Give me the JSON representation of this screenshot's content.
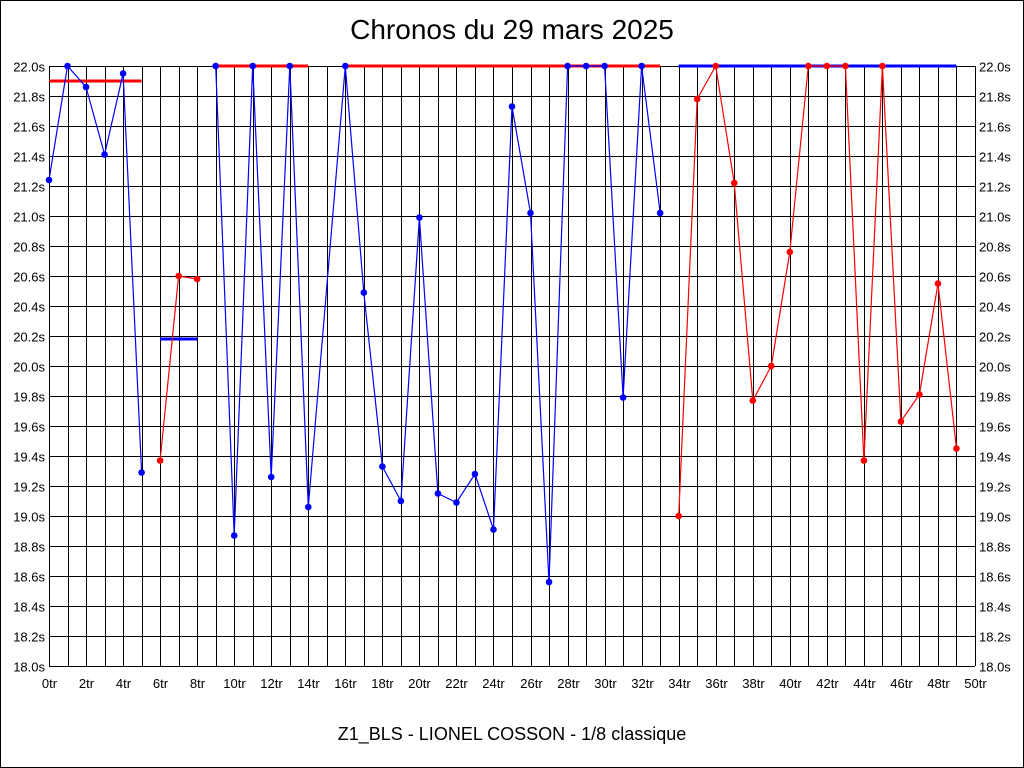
{
  "chart_data": {
    "type": "line",
    "title": "Chronos du 29 mars 2025",
    "subtitle": "Z1_BLS - LIONEL COSSON - 1/8 classique",
    "xlim": [
      0,
      50
    ],
    "ylim": [
      18.0,
      22.0
    ],
    "x_tick_step": 1,
    "x_label_step": 2,
    "x_tick_suffix": "tr",
    "y_tick_step": 0.2,
    "y_tick_suffix": "s",
    "grid": true,
    "y_axis_both_sides": true,
    "colors": {
      "blue": "#0000ff",
      "red": "#ff0000",
      "grid": "#000000"
    },
    "series": [
      {
        "color": "#0000ff",
        "x": [
          0,
          1,
          2,
          3,
          4,
          5
        ],
        "y": [
          21.24,
          22.0,
          21.86,
          21.41,
          21.95,
          19.29
        ]
      },
      {
        "color": "#ff0000",
        "x": [
          6,
          7,
          8
        ],
        "y": [
          19.37,
          20.6,
          20.58
        ]
      },
      {
        "color": "#0000ff",
        "x": [
          9,
          10,
          11,
          12,
          13,
          14,
          16,
          17,
          18,
          19,
          20,
          21,
          22,
          23,
          24,
          25,
          26,
          27,
          28,
          29,
          30,
          31,
          32,
          33
        ],
        "y": [
          22.0,
          18.87,
          22.0,
          19.26,
          22.0,
          19.06,
          22.0,
          20.49,
          19.33,
          19.1,
          20.99,
          19.15,
          19.09,
          19.28,
          18.91,
          21.73,
          21.02,
          18.56,
          22.0,
          22.0,
          22.0,
          19.79,
          22.0,
          21.02
        ]
      },
      {
        "color": "#ff0000",
        "x": [
          34,
          35,
          36,
          37,
          38,
          39,
          40,
          41,
          42,
          43,
          44,
          45,
          46,
          47,
          48,
          49
        ],
        "y": [
          19.0,
          21.78,
          22.0,
          21.22,
          19.77,
          20.0,
          20.76,
          22.0,
          22.0,
          22.0,
          19.37,
          22.0,
          19.63,
          19.81,
          20.55,
          19.45
        ]
      }
    ],
    "reference_lines": [
      {
        "color": "#ff0000",
        "x": [
          0,
          5
        ],
        "y": 21.9
      },
      {
        "color": "#0000ff",
        "x": [
          6,
          8
        ],
        "y": 20.18
      },
      {
        "color": "#ff0000",
        "x": [
          9,
          14
        ],
        "y": 22.0
      },
      {
        "color": "#ff0000",
        "x": [
          16,
          33
        ],
        "y": 22.0
      },
      {
        "color": "#0000ff",
        "x": [
          34,
          49
        ],
        "y": 22.0
      }
    ]
  }
}
